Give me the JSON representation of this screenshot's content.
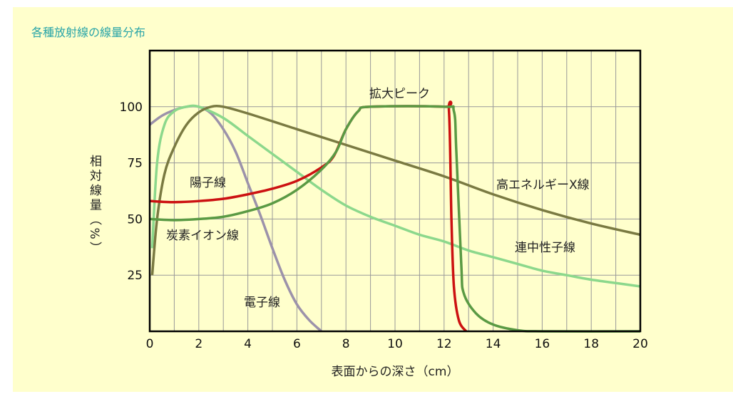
{
  "chart_data": {
    "type": "line",
    "title": "各種放射線の線量分布",
    "xlabel": "表面からの深さ（cm）",
    "ylabel": "相対線量（%）",
    "ylabel_chars": [
      "相",
      "対",
      "線",
      "量",
      "（",
      "%",
      "）"
    ],
    "xlim": [
      0,
      20
    ],
    "ylim": [
      0,
      125
    ],
    "xticks": [
      "0",
      "2",
      "4",
      "6",
      "8",
      "10",
      "12",
      "14",
      "16",
      "18",
      "20"
    ],
    "yticks": [
      "25",
      "50",
      "75",
      "100"
    ],
    "grid": true,
    "annotation": "拡大ピーク",
    "series": [
      {
        "name": "電子線",
        "color": "#9c92aa",
        "x": [
          0,
          0.5,
          1,
          1.5,
          2,
          2.5,
          3,
          3.5,
          4,
          4.5,
          5,
          5.5,
          6,
          6.5,
          7
        ],
        "y": [
          92,
          96,
          98.5,
          100,
          100,
          97,
          90,
          80,
          66,
          52,
          37,
          23,
          12,
          5,
          0
        ]
      },
      {
        "name": "連中性子線",
        "color": "#8cd88c",
        "x": [
          0.1,
          0.3,
          0.6,
          1,
          1.5,
          2,
          3,
          4,
          5,
          6,
          7,
          8,
          9,
          10,
          11,
          12,
          13,
          14,
          15,
          16,
          17,
          18,
          19,
          20
        ],
        "y": [
          37,
          75,
          92,
          98,
          100,
          100,
          95,
          87,
          79,
          71,
          63,
          56,
          51,
          47,
          43,
          40,
          36,
          33,
          30,
          27,
          25,
          23,
          21.5,
          20
        ]
      },
      {
        "name": "高エネルギーX線",
        "color": "#7a7a42",
        "x": [
          0.1,
          0.3,
          0.6,
          1,
          1.5,
          2,
          2.5,
          3,
          4,
          6,
          8,
          10,
          12,
          14,
          16,
          18,
          20
        ],
        "y": [
          25,
          50,
          70,
          82,
          92,
          97.5,
          100,
          100,
          97,
          90,
          83,
          76,
          69,
          61,
          54,
          48,
          43
        ]
      },
      {
        "name": "陽子線",
        "color": "#cc1111",
        "x": [
          0,
          1,
          2,
          3,
          4,
          5,
          6,
          7,
          7.5,
          8,
          8.5,
          9,
          12,
          12.2,
          12.3,
          12.4,
          12.6,
          12.9
        ],
        "y": [
          58,
          57.5,
          58,
          59,
          61,
          63.5,
          67,
          73,
          78,
          90,
          98,
          100,
          100,
          98,
          50,
          20,
          5,
          0
        ]
      },
      {
        "name": "炭素イオン線",
        "color": "#5a9a44",
        "x": [
          0,
          1,
          2,
          3,
          4,
          5,
          6,
          7,
          7.6,
          8,
          8.5,
          9,
          12,
          12.4,
          12.5,
          12.7,
          12.8,
          13.3,
          14,
          15,
          16,
          20
        ],
        "y": [
          50,
          49.5,
          50,
          51,
          53.5,
          57,
          63,
          72,
          80,
          90,
          98,
          100,
          100,
          98,
          80,
          30,
          17,
          8,
          3,
          0.5,
          0,
          0
        ]
      }
    ]
  }
}
